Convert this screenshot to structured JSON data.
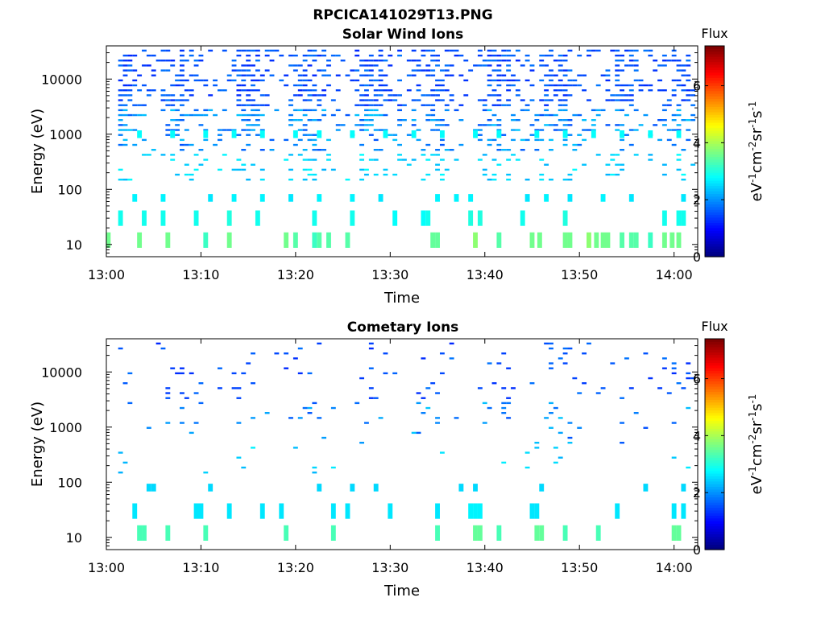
{
  "figure": {
    "title": "RPCICA141029T13.PNG"
  },
  "colormap": [
    "#00007f",
    "#0000ff",
    "#007fff",
    "#00ffff",
    "#7fff7f",
    "#ffff00",
    "#ff7f00",
    "#ff0000",
    "#7f0000"
  ],
  "chart_data": [
    {
      "type": "heatmap",
      "title": "Solar Wind Ions",
      "xlabel": "Time",
      "ylabel": "Energy (eV)",
      "xticks": [
        "13:00",
        "13:10",
        "13:20",
        "13:30",
        "13:40",
        "13:50",
        "14:00"
      ],
      "xlim_minutes": [
        0,
        62.5
      ],
      "yscale": "log",
      "yticks": [
        "10",
        "100",
        "1000",
        "10000"
      ],
      "ylim": [
        6,
        40000
      ],
      "grid": false,
      "colorbar": {
        "title": "Flux",
        "label": "eV-1cm-2sr-1s-1",
        "ticks": [
          "0",
          "2",
          "4",
          "6"
        ],
        "range": [
          0,
          7.4
        ]
      },
      "cells_legend": "cells: [time_minutes, energy_eV, flux]",
      "cells": [
        [
          3.5,
          12,
          3.6
        ],
        [
          6.5,
          12,
          3.6
        ],
        [
          10.5,
          12,
          3.2
        ],
        [
          13.0,
          12,
          3.6
        ],
        [
          19.0,
          12,
          3.6
        ],
        [
          20.0,
          12,
          3.4
        ],
        [
          22.5,
          12,
          3.4
        ],
        [
          23.5,
          12,
          3.4
        ],
        [
          25.5,
          12,
          3.4
        ],
        [
          34.5,
          12,
          3.5
        ],
        [
          35.0,
          12,
          3.5
        ],
        [
          39.0,
          12,
          3.8
        ],
        [
          41.5,
          12,
          3.4
        ],
        [
          45.0,
          12,
          3.6
        ],
        [
          45.8,
          12,
          3.6
        ],
        [
          48.5,
          12,
          3.6
        ],
        [
          49.0,
          12,
          3.6
        ],
        [
          51.0,
          12,
          3.8
        ],
        [
          51.8,
          12,
          3.6
        ],
        [
          52.5,
          12,
          3.6
        ],
        [
          53.0,
          12,
          3.6
        ],
        [
          54.5,
          12,
          3.4
        ],
        [
          56.0,
          12,
          3.4
        ],
        [
          59.0,
          12,
          3.6
        ],
        [
          59.8,
          12,
          3.6
        ],
        [
          60.5,
          12,
          3.6
        ],
        [
          0.2,
          12,
          3.6
        ],
        [
          22.0,
          12,
          3.2
        ],
        [
          55.5,
          12,
          3.4
        ],
        [
          57.5,
          12,
          3.2
        ],
        [
          1.5,
          30,
          2.9
        ],
        [
          4.0,
          30,
          2.9
        ],
        [
          6.0,
          30,
          2.9
        ],
        [
          9.5,
          30,
          2.9
        ],
        [
          13.0,
          30,
          3.0
        ],
        [
          16.0,
          30,
          2.9
        ],
        [
          22.0,
          30,
          2.9
        ],
        [
          26.0,
          30,
          2.9
        ],
        [
          34.0,
          30,
          2.9
        ],
        [
          38.5,
          30,
          3.0
        ],
        [
          39.5,
          30,
          3.0
        ],
        [
          48.5,
          30,
          3.0
        ],
        [
          59.0,
          30,
          2.9
        ],
        [
          60.5,
          30,
          2.9
        ],
        [
          61.0,
          30,
          2.9
        ],
        [
          30.5,
          30,
          2.8
        ],
        [
          33.5,
          30,
          2.8
        ],
        [
          44.0,
          30,
          2.9
        ],
        [
          3.0,
          70,
          2.7
        ],
        [
          6.0,
          70,
          2.7
        ],
        [
          11.0,
          70,
          2.6
        ],
        [
          13.5,
          70,
          2.7
        ],
        [
          16.5,
          70,
          2.7
        ],
        [
          19.5,
          70,
          2.6
        ],
        [
          22.5,
          70,
          2.7
        ],
        [
          26.0,
          70,
          2.7
        ],
        [
          29.0,
          70,
          2.6
        ],
        [
          35.0,
          70,
          2.7
        ],
        [
          37.0,
          70,
          2.7
        ],
        [
          38.5,
          70,
          2.7
        ],
        [
          44.5,
          70,
          2.6
        ],
        [
          46.5,
          70,
          2.7
        ],
        [
          49.0,
          70,
          2.6
        ],
        [
          52.5,
          70,
          2.7
        ],
        [
          55.5,
          70,
          2.6
        ],
        [
          61.0,
          70,
          2.6
        ],
        [
          3.5,
          1000,
          2.8
        ],
        [
          7.0,
          1000,
          2.8
        ],
        [
          10.5,
          1000,
          2.8
        ],
        [
          13.5,
          1000,
          2.8
        ],
        [
          16.5,
          1000,
          2.8
        ],
        [
          20.0,
          1000,
          2.8
        ],
        [
          22.5,
          1000,
          2.8
        ],
        [
          26.0,
          1000,
          2.8
        ],
        [
          29.5,
          1000,
          2.8
        ],
        [
          32.5,
          1000,
          2.8
        ],
        [
          35.5,
          1000,
          2.8
        ],
        [
          39.0,
          1000,
          2.8
        ],
        [
          41.5,
          1000,
          2.8
        ],
        [
          45.5,
          1000,
          2.8
        ],
        [
          48.5,
          1000,
          2.8
        ],
        [
          51.5,
          1000,
          2.8
        ],
        [
          54.5,
          1000,
          2.8
        ],
        [
          57.5,
          1000,
          2.8
        ],
        [
          60.5,
          1000,
          2.8
        ]
      ],
      "background_cells_generated_seed": 11
    },
    {
      "type": "heatmap",
      "title": "Cometary Ions",
      "xlabel": "Time",
      "ylabel": "Energy (eV)",
      "xticks": [
        "13:00",
        "13:10",
        "13:20",
        "13:30",
        "13:40",
        "13:50",
        "14:00"
      ],
      "xlim_minutes": [
        0,
        62.5
      ],
      "yscale": "log",
      "yticks": [
        "10",
        "100",
        "1000",
        "10000"
      ],
      "ylim": [
        6,
        40000
      ],
      "grid": false,
      "colorbar": {
        "title": "Flux",
        "label": "eV-1cm-2sr-1s-1",
        "ticks": [
          "0",
          "2",
          "4",
          "6"
        ],
        "range": [
          0,
          7.4
        ]
      },
      "cells_legend": "cells: [time_minutes, energy_eV, flux]",
      "cells": [
        [
          3.5,
          12,
          3.3
        ],
        [
          4.0,
          12,
          3.3
        ],
        [
          6.5,
          12,
          3.3
        ],
        [
          10.5,
          12,
          3.3
        ],
        [
          19.0,
          12,
          3.3
        ],
        [
          24.0,
          12,
          3.3
        ],
        [
          35.0,
          12,
          3.3
        ],
        [
          39.0,
          12,
          3.5
        ],
        [
          39.5,
          12,
          3.5
        ],
        [
          41.5,
          12,
          3.3
        ],
        [
          45.5,
          12,
          3.5
        ],
        [
          46.0,
          12,
          3.5
        ],
        [
          48.5,
          12,
          3.3
        ],
        [
          52.0,
          12,
          3.3
        ],
        [
          60.0,
          12,
          3.5
        ],
        [
          60.5,
          12,
          3.5
        ],
        [
          3.0,
          30,
          2.6
        ],
        [
          9.5,
          30,
          2.6
        ],
        [
          10.0,
          30,
          2.6
        ],
        [
          13.0,
          30,
          2.6
        ],
        [
          16.5,
          30,
          2.6
        ],
        [
          18.5,
          30,
          2.6
        ],
        [
          24.0,
          30,
          2.6
        ],
        [
          25.5,
          30,
          2.6
        ],
        [
          30.0,
          30,
          2.6
        ],
        [
          35.0,
          30,
          2.6
        ],
        [
          38.5,
          30,
          2.7
        ],
        [
          39.0,
          30,
          2.7
        ],
        [
          39.5,
          30,
          2.7
        ],
        [
          45.0,
          30,
          2.6
        ],
        [
          45.5,
          30,
          2.6
        ],
        [
          54.0,
          30,
          2.6
        ],
        [
          60.0,
          30,
          2.6
        ],
        [
          61.0,
          30,
          2.6
        ],
        [
          4.5,
          80,
          2.5
        ],
        [
          5.0,
          80,
          2.5
        ],
        [
          11.0,
          80,
          2.5
        ],
        [
          22.5,
          80,
          2.5
        ],
        [
          26.0,
          80,
          2.5
        ],
        [
          28.5,
          80,
          2.5
        ],
        [
          37.5,
          80,
          2.5
        ],
        [
          39.0,
          80,
          2.5
        ],
        [
          46.0,
          80,
          2.5
        ],
        [
          57.0,
          80,
          2.5
        ],
        [
          61.0,
          80,
          2.5
        ]
      ],
      "background_cells_generated_seed": 23
    }
  ]
}
